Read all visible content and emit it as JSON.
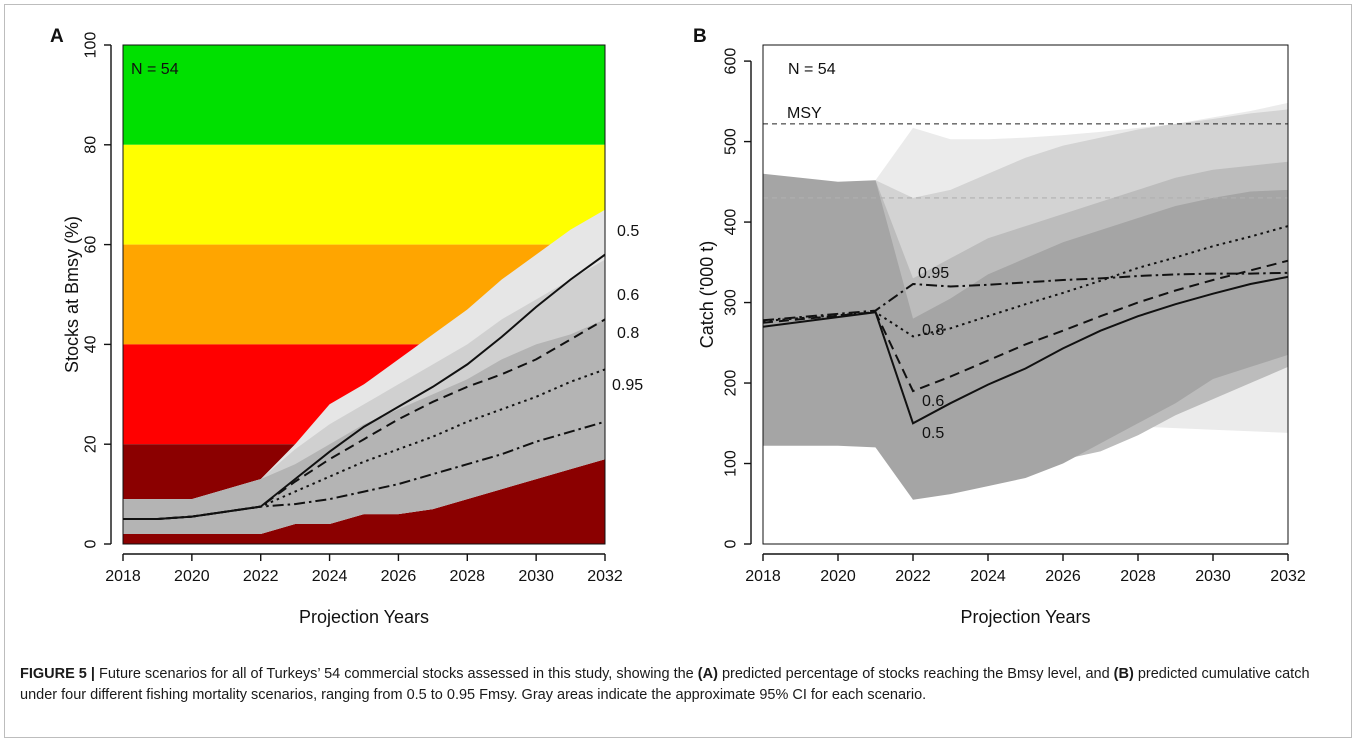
{
  "caption": {
    "label": "FIGURE 5 |",
    "part1": " Future scenarios for all of Turkeys’ 54 commercial stocks assessed in this study, showing the ",
    "bold_a": "(A)",
    "part2": " predicted percentage of stocks reaching the Bmsy level, and ",
    "bold_b": "(B)",
    "part3": " predicted cumulative catch under four different fishing mortality scenarios, ranging from 0.5 to 0.95 Fmsy. Gray areas indicate the approximate 95% CI for each scenario."
  },
  "chart_data": [
    {
      "panel_label": "A",
      "type": "line",
      "xlabel": "Projection Years",
      "ylabel": "Stocks at Bmsy (%)",
      "annotation": "N = 54",
      "xlim": [
        2018,
        2032
      ],
      "ylim": [
        0,
        100
      ],
      "xticks": [
        2018,
        2020,
        2022,
        2024,
        2026,
        2028,
        2030,
        2032
      ],
      "yticks": [
        0,
        20,
        40,
        60,
        80,
        100
      ],
      "grid": false,
      "background_bands": [
        {
          "from": 80,
          "to": 100,
          "color": "#00e000"
        },
        {
          "from": 60,
          "to": 80,
          "color": "#ffff00"
        },
        {
          "from": 40,
          "to": 60,
          "color": "#ffa500"
        },
        {
          "from": 20,
          "to": 40,
          "color": "#ff0000"
        },
        {
          "from": 0,
          "to": 20,
          "color": "#8b0000"
        }
      ],
      "ci_bands": [
        {
          "color": "#e6e6e6",
          "x": [
            2018,
            2019,
            2020,
            2021,
            2022,
            2023,
            2024,
            2025,
            2026,
            2027,
            2028,
            2029,
            2030,
            2031,
            2032
          ],
          "lower": [
            2,
            2,
            2,
            2,
            2,
            4,
            4,
            6,
            6,
            7,
            9,
            11,
            13,
            15,
            17
          ],
          "upper": [
            9,
            9,
            9,
            11,
            13,
            20,
            28,
            32,
            37,
            42,
            47,
            53,
            58,
            63,
            67
          ]
        },
        {
          "color": "#d0d0d0",
          "x": [
            2018,
            2019,
            2020,
            2021,
            2022,
            2023,
            2024,
            2025,
            2026,
            2027,
            2028,
            2029,
            2030,
            2031,
            2032
          ],
          "lower": [
            2,
            2,
            2,
            2,
            2,
            4,
            4,
            6,
            6,
            7,
            9,
            11,
            13,
            15,
            17
          ],
          "upper": [
            9,
            9,
            9,
            11,
            13,
            19,
            24,
            28,
            32,
            36,
            40,
            45,
            49,
            53,
            57
          ]
        },
        {
          "color": "#b4b4b4",
          "x": [
            2018,
            2019,
            2020,
            2021,
            2022,
            2023,
            2024,
            2025,
            2026,
            2027,
            2028,
            2029,
            2030,
            2031,
            2032
          ],
          "lower": [
            2,
            2,
            2,
            2,
            2,
            4,
            4,
            6,
            6,
            7,
            9,
            11,
            13,
            15,
            17
          ],
          "upper": [
            9,
            9,
            9,
            11,
            13,
            16,
            20,
            24,
            27,
            30,
            33,
            37,
            40,
            42,
            45
          ]
        }
      ],
      "series": [
        {
          "name": "0.5",
          "dash": "solid",
          "x": [
            2018,
            2019,
            2020,
            2021,
            2022,
            2023,
            2024,
            2025,
            2026,
            2027,
            2028,
            2029,
            2030,
            2031,
            2032
          ],
          "values": [
            5,
            5,
            5.5,
            6.5,
            7.5,
            13,
            18.5,
            23.5,
            27.5,
            31.5,
            36,
            41.5,
            47.5,
            53,
            58
          ]
        },
        {
          "name": "0.6",
          "dash": "long",
          "x": [
            2018,
            2019,
            2020,
            2021,
            2022,
            2023,
            2024,
            2025,
            2026,
            2027,
            2028,
            2029,
            2030,
            2031,
            2032
          ],
          "values": [
            5,
            5,
            5.5,
            6.5,
            7.5,
            12.5,
            17,
            21,
            25,
            28.5,
            31.5,
            34,
            37,
            41,
            45
          ]
        },
        {
          "name": "0.8",
          "dash": "dotted",
          "x": [
            2018,
            2019,
            2020,
            2021,
            2022,
            2023,
            2024,
            2025,
            2026,
            2027,
            2028,
            2029,
            2030,
            2031,
            2032
          ],
          "values": [
            5,
            5,
            5.5,
            6.5,
            7.5,
            10.5,
            13.5,
            16.5,
            19,
            21.5,
            24.5,
            27,
            29.5,
            32.5,
            35
          ]
        },
        {
          "name": "0.95",
          "dash": "dotdash",
          "x": [
            2018,
            2019,
            2020,
            2021,
            2022,
            2023,
            2024,
            2025,
            2026,
            2027,
            2028,
            2029,
            2030,
            2031,
            2032
          ],
          "values": [
            5,
            5,
            5.5,
            6.5,
            7.5,
            8,
            9,
            10.5,
            12,
            14,
            16,
            18,
            20.5,
            22.5,
            24.5
          ]
        }
      ]
    },
    {
      "panel_label": "B",
      "type": "line",
      "xlabel": "Projection Years",
      "ylabel": "Catch ('000 t)",
      "annotation": "N = 54",
      "xlim": [
        2018,
        2032
      ],
      "ylim": [
        0,
        620
      ],
      "xticks": [
        2018,
        2020,
        2022,
        2024,
        2026,
        2028,
        2030,
        2032
      ],
      "yticks": [
        0,
        100,
        200,
        300,
        400,
        500,
        600
      ],
      "grid": false,
      "reference_lines": [
        {
          "label": "MSY",
          "value": 522
        },
        {
          "label": "",
          "value": 430
        }
      ],
      "ci_bands": [
        {
          "color": "#ebebeb",
          "x": [
            2021,
            2022,
            2023,
            2024,
            2025,
            2026,
            2027,
            2028,
            2029,
            2030,
            2031,
            2032
          ],
          "lower": [
            290,
            150,
            150,
            150,
            150,
            150,
            148,
            146,
            144,
            142,
            140,
            138
          ],
          "upper": [
            452,
            517,
            503,
            503,
            505,
            508,
            512,
            517,
            522,
            530,
            538,
            548
          ]
        },
        {
          "color": "#d3d3d3",
          "x": [
            2021,
            2022,
            2023,
            2024,
            2025,
            2026,
            2027,
            2028,
            2029,
            2030,
            2031,
            2032
          ],
          "lower": [
            120,
            80,
            85,
            95,
            105,
            115,
            125,
            145,
            165,
            185,
            205,
            225
          ],
          "upper": [
            452,
            430,
            440,
            460,
            480,
            495,
            505,
            515,
            522,
            528,
            535,
            540
          ]
        },
        {
          "color": "#bcbcbc",
          "x": [
            2021,
            2022,
            2023,
            2024,
            2025,
            2026,
            2027,
            2028,
            2029,
            2030,
            2031,
            2032
          ],
          "lower": [
            120,
            70,
            75,
            85,
            95,
            105,
            115,
            135,
            160,
            180,
            200,
            220
          ],
          "upper": [
            452,
            330,
            355,
            380,
            395,
            410,
            425,
            440,
            455,
            465,
            470,
            475
          ]
        },
        {
          "color": "#a5a5a5",
          "x": [
            2018,
            2019,
            2020,
            2021,
            2022,
            2023,
            2024,
            2025,
            2026,
            2027,
            2028,
            2029,
            2030,
            2031,
            2032
          ],
          "lower": [
            122,
            122,
            122,
            120,
            55,
            62,
            72,
            82,
            100,
            125,
            150,
            175,
            205,
            220,
            235
          ],
          "upper": [
            460,
            455,
            450,
            452,
            280,
            305,
            335,
            355,
            375,
            390,
            405,
            420,
            430,
            438,
            440
          ]
        }
      ],
      "series": [
        {
          "name": "0.5",
          "dash": "solid",
          "x": [
            2018,
            2021,
            2022,
            2023,
            2024,
            2025,
            2026,
            2027,
            2028,
            2029,
            2030,
            2031,
            2032
          ],
          "values": [
            270,
            288,
            150,
            175,
            198,
            218,
            243,
            265,
            283,
            298,
            311,
            323,
            332
          ]
        },
        {
          "name": "0.6",
          "dash": "long",
          "x": [
            2018,
            2021,
            2022,
            2023,
            2024,
            2025,
            2026,
            2027,
            2028,
            2029,
            2030,
            2031,
            2032
          ],
          "values": [
            275,
            288,
            190,
            208,
            228,
            248,
            265,
            283,
            300,
            315,
            328,
            340,
            352
          ]
        },
        {
          "name": "0.8",
          "dash": "dotted",
          "x": [
            2018,
            2021,
            2022,
            2023,
            2024,
            2025,
            2026,
            2027,
            2028,
            2029,
            2030,
            2031,
            2032
          ],
          "values": [
            277,
            288,
            258,
            268,
            283,
            298,
            312,
            327,
            343,
            356,
            370,
            382,
            395
          ]
        },
        {
          "name": "0.95",
          "dash": "dotdash",
          "x": [
            2018,
            2021,
            2022,
            2023,
            2024,
            2025,
            2026,
            2027,
            2028,
            2029,
            2030,
            2031,
            2032
          ],
          "values": [
            278,
            290,
            323,
            320,
            322,
            325,
            328,
            330,
            333,
            335,
            336,
            336,
            337
          ]
        }
      ]
    }
  ]
}
